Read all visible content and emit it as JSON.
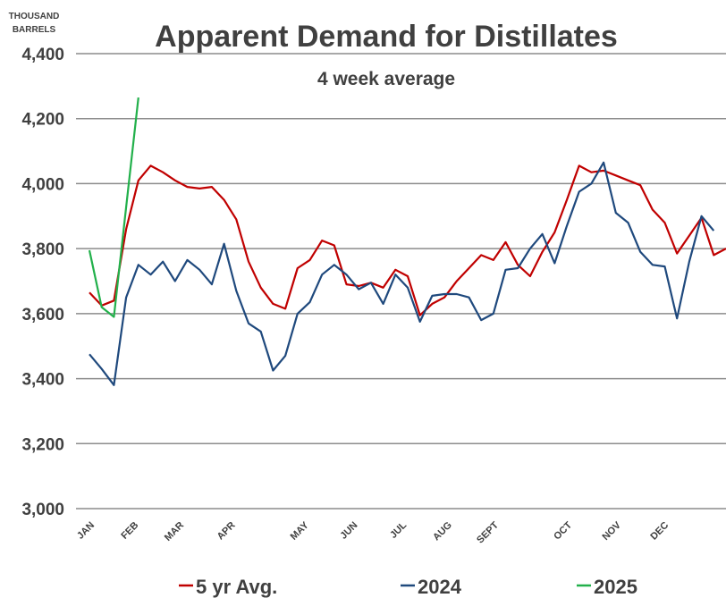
{
  "chart_data": {
    "type": "line",
    "title": "Apparent Demand for Distillates",
    "subtitle": "4 week average",
    "ylabel": [
      "THOUSAND",
      "BARRELS"
    ],
    "x": [
      1,
      2,
      3,
      4,
      5,
      6,
      7,
      8,
      9,
      10,
      11,
      12,
      13,
      14,
      15,
      16,
      17,
      18,
      19,
      20,
      21,
      22,
      23,
      24,
      25,
      26,
      27,
      28,
      29,
      30,
      31,
      32,
      33,
      34,
      35,
      36,
      37,
      38,
      39,
      40,
      41,
      42,
      43,
      44,
      45,
      46,
      47,
      48,
      49,
      50,
      51,
      52,
      53
    ],
    "xlim": [
      1,
      53
    ],
    "xticks": [
      {
        "value": 1,
        "label": "JAN"
      },
      {
        "value": 4.6,
        "label": "FEB"
      },
      {
        "value": 8.3,
        "label": "MAR"
      },
      {
        "value": 12.5,
        "label": "APR"
      },
      {
        "value": 18.5,
        "label": "MAY"
      },
      {
        "value": 22.5,
        "label": "JUN"
      },
      {
        "value": 26.5,
        "label": "JUL"
      },
      {
        "value": 30.2,
        "label": "AUG"
      },
      {
        "value": 34,
        "label": "SEPT"
      },
      {
        "value": 40,
        "label": "OCT"
      },
      {
        "value": 44,
        "label": "NOV"
      },
      {
        "value": 47.9,
        "label": "DEC"
      }
    ],
    "ylim": [
      3000,
      4400
    ],
    "yticks": [
      {
        "value": 3000,
        "label": "3,000"
      },
      {
        "value": 3200,
        "label": "3,200"
      },
      {
        "value": 3400,
        "label": "3,400"
      },
      {
        "value": 3600,
        "label": "3,600"
      },
      {
        "value": 3800,
        "label": "3,800"
      },
      {
        "value": 4000,
        "label": "4,000"
      },
      {
        "value": 4200,
        "label": "4,200"
      },
      {
        "value": 4400,
        "label": "4,400"
      }
    ],
    "grid": true,
    "legend": "bottom",
    "series": [
      {
        "name": "5 yr Avg.",
        "color": "#c00000",
        "values": [
          3665,
          3625,
          3640,
          3860,
          4010,
          4055,
          4035,
          4010,
          3990,
          3985,
          3990,
          3950,
          3890,
          3760,
          3680,
          3630,
          3615,
          3740,
          3765,
          3825,
          3810,
          3690,
          3685,
          3695,
          3680,
          3735,
          3715,
          3595,
          3630,
          3650,
          3700,
          3740,
          3780,
          3765,
          3820,
          3750,
          3715,
          3790,
          3850,
          3950,
          4055,
          4035,
          4040,
          4025,
          4010,
          3995,
          3920,
          3880,
          3785,
          3840,
          3895,
          3780,
          3800
        ]
      },
      {
        "name": "2024",
        "color": "#1f497d",
        "values": [
          3475,
          3430,
          3380,
          3650,
          3750,
          3720,
          3760,
          3700,
          3765,
          3735,
          3690,
          3815,
          3670,
          3570,
          3545,
          3425,
          3470,
          3600,
          3635,
          3720,
          3750,
          3720,
          3675,
          3695,
          3630,
          3720,
          3680,
          3575,
          3655,
          3660,
          3660,
          3650,
          3580,
          3600,
          3735,
          3740,
          3800,
          3845,
          3755,
          3870,
          3975,
          4000,
          4065,
          3910,
          3880,
          3790,
          3750,
          3745,
          3585,
          3760,
          3900,
          3855,
          null
        ]
      },
      {
        "name": "2025",
        "color": "#22b04b",
        "values": [
          3795,
          3620,
          3590,
          3928,
          4265,
          null,
          null,
          null,
          null,
          null,
          null,
          null,
          null,
          null,
          null,
          null,
          null,
          null,
          null,
          null,
          null,
          null,
          null,
          null,
          null,
          null,
          null,
          null,
          null,
          null,
          null,
          null,
          null,
          null,
          null,
          null,
          null,
          null,
          null,
          null,
          null,
          null,
          null,
          null,
          null,
          null,
          null,
          null,
          null,
          null,
          null,
          null,
          null
        ]
      }
    ]
  }
}
